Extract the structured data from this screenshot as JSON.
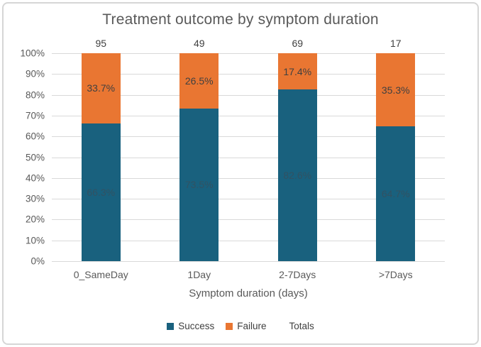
{
  "window": {
    "background": "#ffffff",
    "frame_border_color": "#d6d6d6",
    "gridline_color": "#d9d9d9",
    "axis_text_color": "#595959",
    "data_label_color": "#404040"
  },
  "chart_data": {
    "type": "bar",
    "stacked": true,
    "title": "Treatment outcome by symptom duration",
    "xlabel": "Symptom duration (days)",
    "categories": [
      "0_SameDay",
      "1Day",
      "2-7Days",
      ">7Days"
    ],
    "series": [
      {
        "name": "Success",
        "color": "#19617E",
        "label_color": "#315263",
        "values_pct": [
          66.3,
          73.5,
          82.6,
          64.7
        ],
        "labels": [
          "66.3%",
          "73.5%",
          "82.6%",
          "64.7%"
        ]
      },
      {
        "name": "Failure",
        "color": "#E97632",
        "label_color": "#404040",
        "values_pct": [
          33.7,
          26.5,
          17.4,
          35.3
        ],
        "labels": [
          "33.7%",
          "26.5%",
          "17.4%",
          "35.3%"
        ]
      }
    ],
    "totals": {
      "name": "Totals",
      "values": [
        "95",
        "49",
        "69",
        "17"
      ]
    },
    "y_axis": {
      "min": 0,
      "max": 100,
      "ticks": [
        "0%",
        "10%",
        "20%",
        "30%",
        "40%",
        "50%",
        "60%",
        "70%",
        "80%",
        "90%",
        "100%"
      ]
    },
    "grid": true,
    "legend_position": "bottom",
    "legend": [
      {
        "label": "Success",
        "color": "#19617E"
      },
      {
        "label": "Failure",
        "color": "#E97632"
      },
      {
        "label": "Totals",
        "color": null
      }
    ]
  }
}
